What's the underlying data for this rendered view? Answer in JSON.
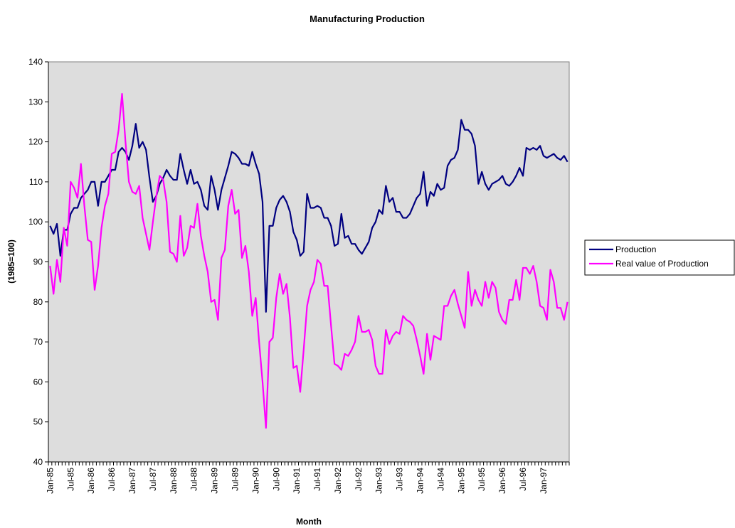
{
  "chart_data": {
    "type": "line",
    "title": "Manufacturing Production",
    "x_label": "Month",
    "y_label": "(1985=100)",
    "categories": [
      "Jan-85",
      null,
      null,
      null,
      null,
      null,
      "Jul-85",
      null,
      null,
      null,
      null,
      null,
      "Jan-86",
      null,
      null,
      null,
      null,
      null,
      "Jul-86",
      null,
      null,
      null,
      null,
      null,
      "Jan-87",
      null,
      null,
      null,
      null,
      null,
      "Jul-87",
      null,
      null,
      null,
      null,
      null,
      "Jan-88",
      null,
      null,
      null,
      null,
      null,
      "Jul-88",
      null,
      null,
      null,
      null,
      null,
      "Jan-89",
      null,
      null,
      null,
      null,
      null,
      "Jul-89",
      null,
      null,
      null,
      null,
      null,
      "Jan-90",
      null,
      null,
      null,
      null,
      null,
      "Jul-90",
      null,
      null,
      null,
      null,
      null,
      "Jan-91",
      null,
      null,
      null,
      null,
      null,
      "Jul-91",
      null,
      null,
      null,
      null,
      null,
      "Jan-92",
      null,
      null,
      null,
      null,
      null,
      "Jul-92",
      null,
      null,
      null,
      null,
      null,
      "Jan-93",
      null,
      null,
      null,
      null,
      null,
      "Jul-93",
      null,
      null,
      null,
      null,
      null,
      "Jan-94",
      null,
      null,
      null,
      null,
      null,
      "Jul-94",
      null,
      null,
      null,
      null,
      null,
      "Jan-95",
      null,
      null,
      null,
      null,
      null,
      "Jul-95",
      null,
      null,
      null,
      null,
      null,
      "Jan-96",
      null,
      null,
      null,
      null,
      null,
      "Jul-96",
      null,
      null,
      null,
      null,
      null,
      "Jan-97",
      null,
      null,
      null,
      null,
      null,
      null,
      null
    ],
    "series": [
      {
        "name": "Production",
        "color": "#000080",
        "values": [
          99,
          97,
          99.5,
          91.5,
          98,
          98,
          102,
          103.5,
          103.5,
          106,
          107,
          108,
          110,
          110,
          104,
          110,
          110,
          111.5,
          113,
          113,
          117.5,
          118.5,
          117.5,
          115.5,
          119,
          124.5,
          118.5,
          120,
          118,
          111,
          105,
          106.5,
          109.5,
          111,
          113,
          111.5,
          110.5,
          110.5,
          117,
          113,
          109.5,
          113,
          109.5,
          110,
          108,
          104,
          103,
          111.5,
          108,
          103,
          108,
          111,
          114,
          117.5,
          117,
          116,
          114.5,
          114.5,
          114,
          117.5,
          114.5,
          112,
          105,
          77.5,
          99,
          99,
          103.5,
          105.5,
          106.5,
          105,
          102.5,
          97.5,
          95.5,
          91.5,
          92.5,
          107,
          103.5,
          103.5,
          104,
          103.5,
          101,
          101,
          99,
          94,
          94.5,
          102,
          96,
          96.5,
          94.5,
          94.5,
          93,
          92,
          93.5,
          95,
          98.5,
          100,
          103,
          102,
          109,
          105,
          106,
          102.5,
          102.5,
          101,
          101,
          102,
          104,
          106,
          107,
          112.5,
          104,
          107.5,
          106.5,
          109.5,
          108,
          108.5,
          114,
          115.5,
          116,
          118,
          125.5,
          123,
          123,
          122,
          119,
          109.5,
          112.5,
          109.5,
          108,
          109.5,
          110,
          110.5,
          111.5,
          109.5,
          109,
          110,
          111.5,
          113.5,
          111.5,
          118.5,
          118,
          118.5,
          118,
          119,
          116.5,
          116,
          116.5,
          117,
          116,
          115.5,
          116.5,
          115
        ]
      },
      {
        "name": "Real value of Production",
        "color": "#ff00ff",
        "values": [
          89,
          82,
          90.5,
          85,
          98.5,
          94,
          110,
          108.5,
          106,
          114.5,
          104,
          95.5,
          95,
          83,
          89,
          98.5,
          104,
          107,
          117,
          117.5,
          123,
          132,
          120,
          110,
          107.5,
          107,
          109,
          101,
          97,
          93,
          100,
          106.5,
          111.5,
          110.5,
          105,
          92.5,
          92,
          90,
          101.5,
          91.5,
          93.5,
          99,
          98.5,
          104.5,
          96.5,
          91.5,
          87.5,
          80,
          80.5,
          75.5,
          91,
          93,
          104,
          108,
          102,
          103,
          91,
          94,
          87.5,
          76.5,
          81,
          70,
          60,
          48.5,
          70,
          71,
          81,
          87,
          82,
          84.5,
          76,
          63.5,
          64,
          57.5,
          68,
          79,
          83,
          85,
          90.5,
          89.5,
          84,
          84,
          74,
          64.5,
          64,
          63,
          67,
          66.5,
          68,
          70,
          76.5,
          72.5,
          72.5,
          73,
          70.5,
          64,
          62,
          62,
          73,
          69.5,
          71.5,
          72.5,
          72,
          76.5,
          75.5,
          75,
          74,
          70.5,
          66.5,
          62,
          72,
          65.5,
          71.5,
          71,
          70.5,
          79,
          79,
          81.5,
          83,
          79.5,
          76.5,
          73.5,
          87.5,
          79,
          83,
          80.5,
          79,
          85,
          81,
          85,
          83.5,
          77.5,
          75.5,
          74.5,
          80.5,
          80.5,
          85.5,
          80.5,
          88.5,
          88.5,
          87,
          89,
          85,
          79,
          78.5,
          75.5,
          88,
          85,
          78.5,
          78.5,
          75.5,
          80
        ]
      }
    ],
    "ylim": [
      40,
      140
    ],
    "yticks": [
      40,
      50,
      60,
      70,
      80,
      90,
      100,
      110,
      120,
      130,
      140
    ],
    "legend": "right"
  }
}
